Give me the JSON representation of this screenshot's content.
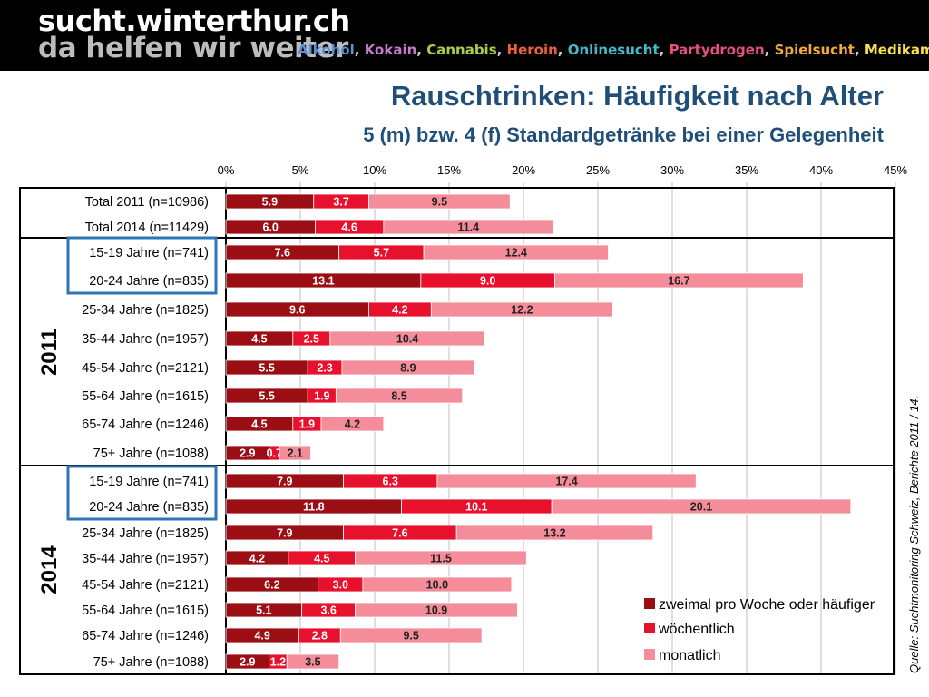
{
  "header": {
    "brand_line1": "sucht.winterthur.ch",
    "brand_line2": "da helfen wir weiter",
    "topics": [
      {
        "label": "Alkohol",
        "color": "#5b8fd6"
      },
      {
        "label": "Kokain",
        "color": "#c879c8"
      },
      {
        "label": "Cannabis",
        "color": "#a9cf4f"
      },
      {
        "label": "Heroin",
        "color": "#e8613c"
      },
      {
        "label": "Onlinesucht",
        "color": "#46b9c9"
      },
      {
        "label": "Partydrogen",
        "color": "#e6507e"
      },
      {
        "label": "Spielsucht",
        "color": "#f2a93b"
      },
      {
        "label": "Medikamente",
        "color": "#f4e04d"
      }
    ]
  },
  "source_note": "Quelle: Suchtmonitoring Schweiz, Berichte 2011 / 14.",
  "chart_data": {
    "type": "bar",
    "orientation": "horizontal",
    "stacked": true,
    "title": "Rauschtrinken: Häufigkeit nach Alter",
    "subtitle": "5 (m) bzw. 4 (f) Standardgetränke bei einer Gelegenheit",
    "x_ticks": [
      "0%",
      "5%",
      "10%",
      "15%",
      "20%",
      "25%",
      "30%",
      "35%",
      "40%",
      "45%"
    ],
    "xlim": [
      0,
      45
    ],
    "grid": true,
    "legend_position": "bottom-right",
    "groups": [
      {
        "label": "",
        "rows": [
          0,
          1
        ]
      },
      {
        "label": "2011",
        "rows": [
          2,
          3,
          4,
          5,
          6,
          7,
          8,
          9
        ]
      },
      {
        "label": "2014",
        "rows": [
          10,
          11,
          12,
          13,
          14,
          15,
          16,
          17
        ]
      }
    ],
    "categories": [
      "Total 2011 (n=10986)",
      "Total 2014 (n=11429)",
      "15-19 Jahre (n=741)",
      "20-24 Jahre (n=835)",
      "25-34 Jahre (n=1825)",
      "35-44 Jahre (n=1957)",
      "45-54 Jahre (n=2121)",
      "55-64 Jahre (n=1615)",
      "65-74 Jahre (n=1246)",
      "75+ Jahre (n=1088)",
      "15-19 Jahre (n=741)",
      "20-24 Jahre (n=835)",
      "25-34 Jahre (n=1825)",
      "35-44 Jahre (n=1957)",
      "45-54 Jahre (n=2121)",
      "55-64 Jahre (n=1615)",
      "65-74 Jahre (n=1246)",
      "75+ Jahre (n=1088)"
    ],
    "series": [
      {
        "name": "zweimal pro Woche oder häufiger",
        "color": "#9b0e14",
        "values": [
          5.9,
          6.0,
          7.6,
          13.1,
          9.6,
          4.5,
          5.5,
          5.5,
          4.5,
          2.9,
          7.9,
          11.8,
          7.9,
          4.2,
          6.2,
          5.1,
          4.9,
          2.9
        ],
        "labels": [
          "5.9",
          "6.0",
          "7.6",
          "13.1",
          "9.6",
          "4.5",
          "5.5",
          "5.5",
          "4.5",
          "2.9",
          "7.9",
          "11.8",
          "7.9",
          "4.2",
          "6.2",
          "5.1",
          "4.9",
          "2.9"
        ]
      },
      {
        "name": "wöchentlich",
        "color": "#e8112d",
        "values": [
          3.7,
          4.6,
          5.7,
          9.0,
          4.2,
          2.5,
          2.3,
          1.9,
          1.9,
          0.7,
          6.3,
          10.1,
          7.6,
          4.5,
          3.0,
          3.6,
          2.8,
          1.2
        ],
        "labels": [
          "3.7",
          "4.6",
          "5.7",
          "9.0",
          "4.2",
          "2.5",
          "2.3",
          "1.9",
          "1.9",
          "0.7",
          "6.3",
          "10.1",
          "7.6",
          "4.5",
          "3.0",
          "3.6",
          "2.8",
          "1.2"
        ]
      },
      {
        "name": "monatlich",
        "color": "#f48c9a",
        "values": [
          9.5,
          11.4,
          12.4,
          16.7,
          12.2,
          10.4,
          8.9,
          8.5,
          4.2,
          2.1,
          17.4,
          20.1,
          13.2,
          11.5,
          10.0,
          10.9,
          9.5,
          3.5
        ],
        "labels": [
          "9.5",
          "11.4",
          "12.4",
          "16.7",
          "12.2",
          "10.4",
          "8.9",
          "8.5",
          "4.2",
          "2.1",
          "17.4",
          "20.1",
          "13.2",
          "11.5",
          "10.0",
          "10.9",
          "9.5",
          "3.5"
        ]
      }
    ],
    "highlight_color": "#2e75b6"
  }
}
